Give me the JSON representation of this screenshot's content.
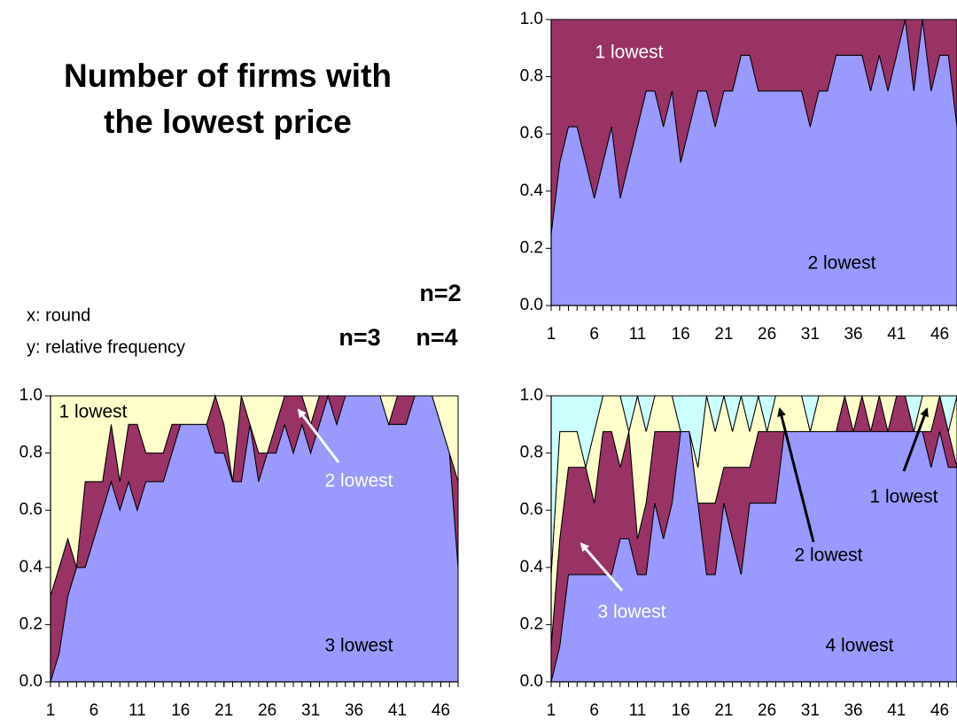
{
  "title": [
    "Number of firms with",
    "the lowest price"
  ],
  "notes": [
    "x: round",
    "y: relative frequency"
  ],
  "chart_data": [
    {
      "type": "area",
      "stacked": true,
      "label": "n=2",
      "x": [
        1,
        2,
        3,
        4,
        5,
        6,
        7,
        8,
        9,
        10,
        11,
        12,
        13,
        14,
        15,
        16,
        17,
        18,
        19,
        20,
        21,
        22,
        23,
        24,
        25,
        26,
        27,
        28,
        29,
        30,
        31,
        32,
        33,
        34,
        35,
        36,
        37,
        38,
        39,
        40,
        41,
        42,
        43,
        44,
        45,
        46,
        47,
        48
      ],
      "xlim": [
        1,
        48
      ],
      "xticks": [
        1,
        6,
        11,
        16,
        21,
        26,
        31,
        36,
        41,
        46
      ],
      "ylim": [
        0,
        1
      ],
      "yticks": [
        {
          "value": 0,
          "label": "0.0"
        },
        {
          "value": 0.2,
          "label": "0.2"
        },
        {
          "value": 0.4,
          "label": "0.4"
        },
        {
          "value": 0.6,
          "label": "0.6"
        },
        {
          "value": 0.8,
          "label": "0.8"
        },
        {
          "value": 1,
          "label": "1.0"
        }
      ],
      "series": [
        {
          "name": "2 lowest",
          "color": "#9999ff",
          "values": [
            0.25,
            0.5,
            0.625,
            0.625,
            0.5,
            0.375,
            0.5,
            0.625,
            0.375,
            0.5,
            0.625,
            0.75,
            0.75,
            0.625,
            0.75,
            0.5,
            0.625,
            0.75,
            0.75,
            0.625,
            0.75,
            0.75,
            0.875,
            0.875,
            0.75,
            0.75,
            0.75,
            0.75,
            0.75,
            0.75,
            0.625,
            0.75,
            0.75,
            0.875,
            0.875,
            0.875,
            0.875,
            0.75,
            0.875,
            0.75,
            0.875,
            1,
            0.75,
            1,
            0.75,
            0.875,
            0.875,
            0.625
          ]
        },
        {
          "name": "1 lowest",
          "color": "#993366",
          "values": [
            0.75,
            0.5,
            0.375,
            0.375,
            0.5,
            0.625,
            0.5,
            0.375,
            0.625,
            0.5,
            0.375,
            0.25,
            0.25,
            0.375,
            0.25,
            0.5,
            0.375,
            0.25,
            0.25,
            0.375,
            0.25,
            0.25,
            0.125,
            0.125,
            0.25,
            0.25,
            0.25,
            0.25,
            0.25,
            0.25,
            0.375,
            0.25,
            0.25,
            0.125,
            0.125,
            0.125,
            0.125,
            0.25,
            0.125,
            0.25,
            0.125,
            0,
            0.25,
            0,
            0.25,
            0.125,
            0.125,
            0.375
          ]
        }
      ]
    },
    {
      "type": "area",
      "stacked": true,
      "label": "n=3",
      "x": [
        1,
        2,
        3,
        4,
        5,
        6,
        7,
        8,
        9,
        10,
        11,
        12,
        13,
        14,
        15,
        16,
        17,
        18,
        19,
        20,
        21,
        22,
        23,
        24,
        25,
        26,
        27,
        28,
        29,
        30,
        31,
        32,
        33,
        34,
        35,
        36,
        37,
        38,
        39,
        40,
        41,
        42,
        43,
        44,
        45,
        46,
        47,
        48
      ],
      "xlim": [
        1,
        48
      ],
      "xticks": [
        1,
        6,
        11,
        16,
        21,
        26,
        31,
        36,
        41,
        46
      ],
      "ylim": [
        0,
        1
      ],
      "yticks": [
        {
          "value": 0,
          "label": "0.0"
        },
        {
          "value": 0.2,
          "label": "0.2"
        },
        {
          "value": 0.4,
          "label": "0.4"
        },
        {
          "value": 0.6,
          "label": "0.6"
        },
        {
          "value": 0.8,
          "label": "0.8"
        },
        {
          "value": 1,
          "label": "1.0"
        }
      ],
      "series": [
        {
          "name": "3 lowest",
          "color": "#9999ff",
          "values": [
            0,
            0.1,
            0.3,
            0.4,
            0.4,
            0.5,
            0.6,
            0.7,
            0.6,
            0.7,
            0.6,
            0.7,
            0.7,
            0.7,
            0.8,
            0.9,
            0.9,
            0.9,
            0.9,
            0.8,
            0.8,
            0.7,
            0.7,
            0.9,
            0.7,
            0.8,
            0.8,
            0.9,
            0.8,
            0.9,
            0.8,
            0.9,
            1,
            0.9,
            1,
            1,
            1,
            1,
            1,
            0.9,
            0.9,
            0.9,
            1,
            1,
            1,
            0.9,
            0.8,
            0.4
          ]
        },
        {
          "name": "2 lowest",
          "color": "#993366",
          "values": [
            0.3,
            0.3,
            0.2,
            0,
            0.3,
            0.2,
            0.1,
            0.2,
            0.1,
            0.2,
            0.3,
            0.1,
            0.1,
            0.1,
            0.1,
            0,
            0,
            0,
            0,
            0.2,
            0.1,
            0,
            0.3,
            0,
            0.1,
            0,
            0.1,
            0.1,
            0.2,
            0.1,
            0.1,
            0.1,
            0,
            0.1,
            0,
            0,
            0,
            0,
            0,
            0,
            0.1,
            0.1,
            0,
            0,
            0,
            0,
            0,
            0.3
          ]
        },
        {
          "name": "1 lowest",
          "color": "#ffffcc",
          "values": [
            0.7,
            0.6,
            0.5,
            0.6,
            0.3,
            0.3,
            0.3,
            0.1,
            0.3,
            0.1,
            0.1,
            0.2,
            0.2,
            0.2,
            0.1,
            0.1,
            0.1,
            0.1,
            0.1,
            0,
            0.1,
            0.3,
            0,
            0.1,
            0.2,
            0.2,
            0.1,
            0,
            0,
            0,
            0.1,
            0,
            0,
            0,
            0,
            0,
            0,
            0,
            0,
            0.1,
            0,
            0,
            0,
            0,
            0,
            0.1,
            0.2,
            0.3
          ]
        }
      ]
    },
    {
      "type": "area",
      "stacked": true,
      "label": "n=4",
      "x": [
        1,
        2,
        3,
        4,
        5,
        6,
        7,
        8,
        9,
        10,
        11,
        12,
        13,
        14,
        15,
        16,
        17,
        18,
        19,
        20,
        21,
        22,
        23,
        24,
        25,
        26,
        27,
        28,
        29,
        30,
        31,
        32,
        33,
        34,
        35,
        36,
        37,
        38,
        39,
        40,
        41,
        42,
        43,
        44,
        45,
        46,
        47,
        48
      ],
      "xlim": [
        1,
        48
      ],
      "xticks": [
        1,
        6,
        11,
        16,
        21,
        26,
        31,
        36,
        41,
        46
      ],
      "ylim": [
        0,
        1
      ],
      "yticks": [
        {
          "value": 0,
          "label": "0.0"
        },
        {
          "value": 0.2,
          "label": "0.2"
        },
        {
          "value": 0.4,
          "label": "0.4"
        },
        {
          "value": 0.6,
          "label": "0.6"
        },
        {
          "value": 0.8,
          "label": "0.8"
        },
        {
          "value": 1,
          "label": "1.0"
        }
      ],
      "series": [
        {
          "name": "4 lowest",
          "color": "#9999ff",
          "values": [
            0,
            0.125,
            0.375,
            0.375,
            0.375,
            0.375,
            0.375,
            0.375,
            0.5,
            0.5,
            0.375,
            0.375,
            0.625,
            0.5,
            0.625,
            0.875,
            0.875,
            0.625,
            0.375,
            0.375,
            0.625,
            0.5,
            0.375,
            0.625,
            0.625,
            0.625,
            0.625,
            0.875,
            0.875,
            0.875,
            0.875,
            0.875,
            0.875,
            0.875,
            0.875,
            0.875,
            0.875,
            0.875,
            0.875,
            0.875,
            0.875,
            0.875,
            0.875,
            0.875,
            0.75,
            0.875,
            0.75,
            0.75
          ]
        },
        {
          "name": "3 lowest",
          "color": "#993366",
          "values": [
            0.125,
            0.375,
            0.375,
            0.375,
            0.375,
            0.25,
            0.5,
            0.5,
            0.25,
            0.375,
            0.125,
            0.25,
            0.25,
            0.375,
            0.25,
            0,
            0,
            0,
            0.25,
            0.25,
            0.125,
            0.25,
            0.375,
            0.125,
            0.25,
            0.25,
            0.25,
            0,
            0,
            0,
            0,
            0,
            0,
            0,
            0.125,
            0,
            0.125,
            0,
            0.125,
            0,
            0.125,
            0.125,
            0,
            0,
            0.125,
            0.125,
            0.125,
            0
          ]
        },
        {
          "name": "2 lowest",
          "color": "#ffffcc",
          "values": [
            0.25,
            0.375,
            0.125,
            0.125,
            0,
            0.25,
            0.125,
            0.125,
            0.25,
            0,
            0.5,
            0.25,
            0.125,
            0.125,
            0.125,
            0,
            0,
            0.125,
            0.375,
            0.25,
            0.25,
            0.125,
            0.25,
            0.125,
            0.125,
            0,
            0.125,
            0.125,
            0.125,
            0.125,
            0,
            0.125,
            0.125,
            0.125,
            0,
            0.125,
            0,
            0.125,
            0,
            0.125,
            0,
            0,
            0,
            0.125,
            0.125,
            0,
            0,
            0.25
          ]
        },
        {
          "name": "1 lowest",
          "color": "#ccffff",
          "values": [
            0.625,
            0.125,
            0.125,
            0.125,
            0.25,
            0.125,
            0,
            0,
            0,
            0.125,
            0,
            0.125,
            0,
            0,
            0,
            0.125,
            0.125,
            0.25,
            0,
            0.125,
            0,
            0.125,
            0,
            0.125,
            0,
            0.125,
            0,
            0,
            0,
            0,
            0.125,
            0,
            0,
            0,
            0,
            0,
            0,
            0,
            0,
            0,
            0,
            0,
            0.125,
            0,
            0,
            0,
            0.125,
            0
          ]
        }
      ]
    }
  ]
}
